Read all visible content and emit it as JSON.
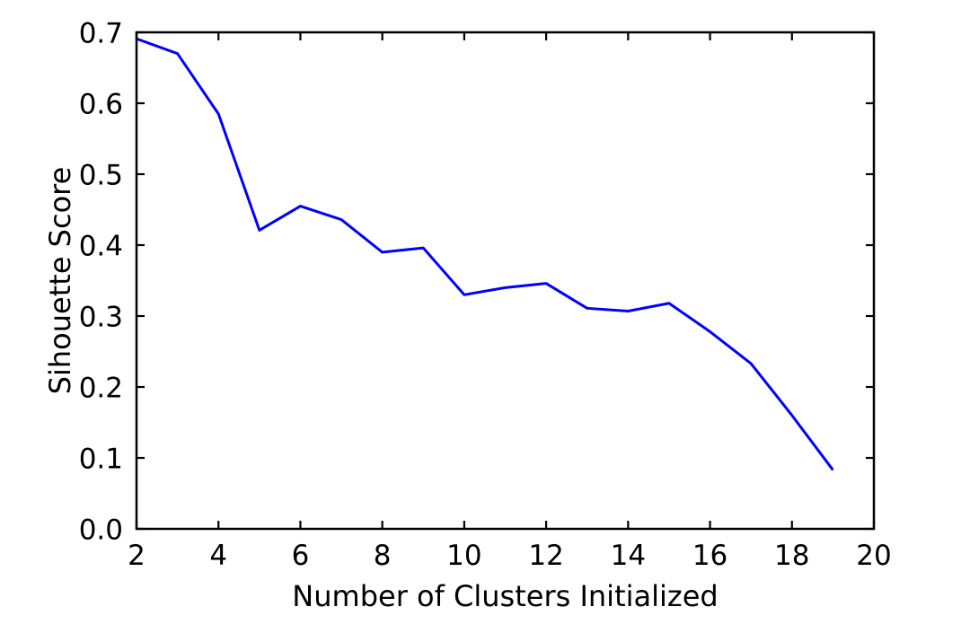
{
  "chart_data": {
    "type": "line",
    "title": "",
    "xlabel": "Number of Clusters Initialized",
    "ylabel": "Sihouette Score",
    "x": [
      2,
      3,
      4,
      5,
      6,
      7,
      8,
      9,
      10,
      11,
      12,
      13,
      14,
      15,
      16,
      17,
      18,
      19
    ],
    "y": [
      0.691,
      0.67,
      0.585,
      0.421,
      0.455,
      0.436,
      0.39,
      0.396,
      0.33,
      0.34,
      0.346,
      0.311,
      0.307,
      0.318,
      0.278,
      0.233,
      0.16,
      0.083
    ],
    "xlim": [
      2,
      20
    ],
    "ylim": [
      0.0,
      0.7
    ],
    "xticks": [
      2,
      4,
      6,
      8,
      10,
      12,
      14,
      16,
      18,
      20
    ],
    "xtick_labels": [
      "2",
      "4",
      "6",
      "8",
      "10",
      "12",
      "14",
      "16",
      "18",
      "20"
    ],
    "yticks": [
      0.0,
      0.1,
      0.2,
      0.3,
      0.4,
      0.5,
      0.6,
      0.7
    ],
    "ytick_labels": [
      "0.0",
      "0.1",
      "0.2",
      "0.3",
      "0.4",
      "0.5",
      "0.6",
      "0.7"
    ],
    "grid": false,
    "legend": null,
    "tick_direction": "in",
    "line_color": "#0000ff",
    "axis_color": "#000000",
    "background_color": "#ffffff"
  }
}
